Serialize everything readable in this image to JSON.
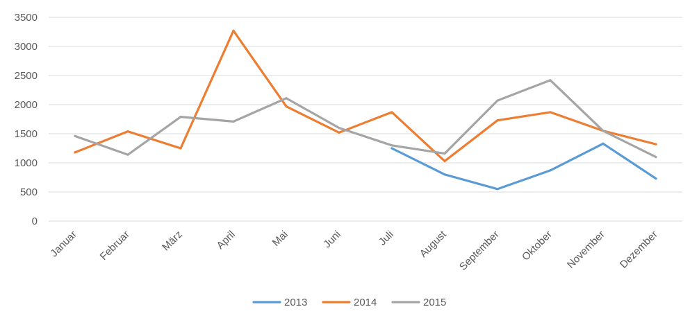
{
  "chart_data": {
    "type": "line",
    "title": "",
    "xlabel": "",
    "ylabel": "",
    "categories": [
      "Januar",
      "Februar",
      "März",
      "April",
      "Mai",
      "Juni",
      "Juli",
      "August",
      "September",
      "Oktober",
      "November",
      "Dezember"
    ],
    "ylim": [
      0,
      3500
    ],
    "yticks": [
      0,
      500,
      1000,
      1500,
      2000,
      2500,
      3000,
      3500
    ],
    "grid": true,
    "legend_position": "bottom",
    "series": [
      {
        "name": "2013",
        "color": "#5B9BD5",
        "values": [
          null,
          null,
          null,
          null,
          null,
          null,
          1250,
          800,
          550,
          870,
          1330,
          730
        ]
      },
      {
        "name": "2014",
        "color": "#ED7D31",
        "values": [
          1180,
          1540,
          1250,
          3270,
          1970,
          1520,
          1870,
          1030,
          1730,
          1870,
          1550,
          1320
        ]
      },
      {
        "name": "2015",
        "color": "#A5A5A5",
        "values": [
          1460,
          1140,
          1790,
          1710,
          2110,
          1600,
          1300,
          1160,
          2070,
          2420,
          1550,
          1100
        ]
      }
    ]
  }
}
